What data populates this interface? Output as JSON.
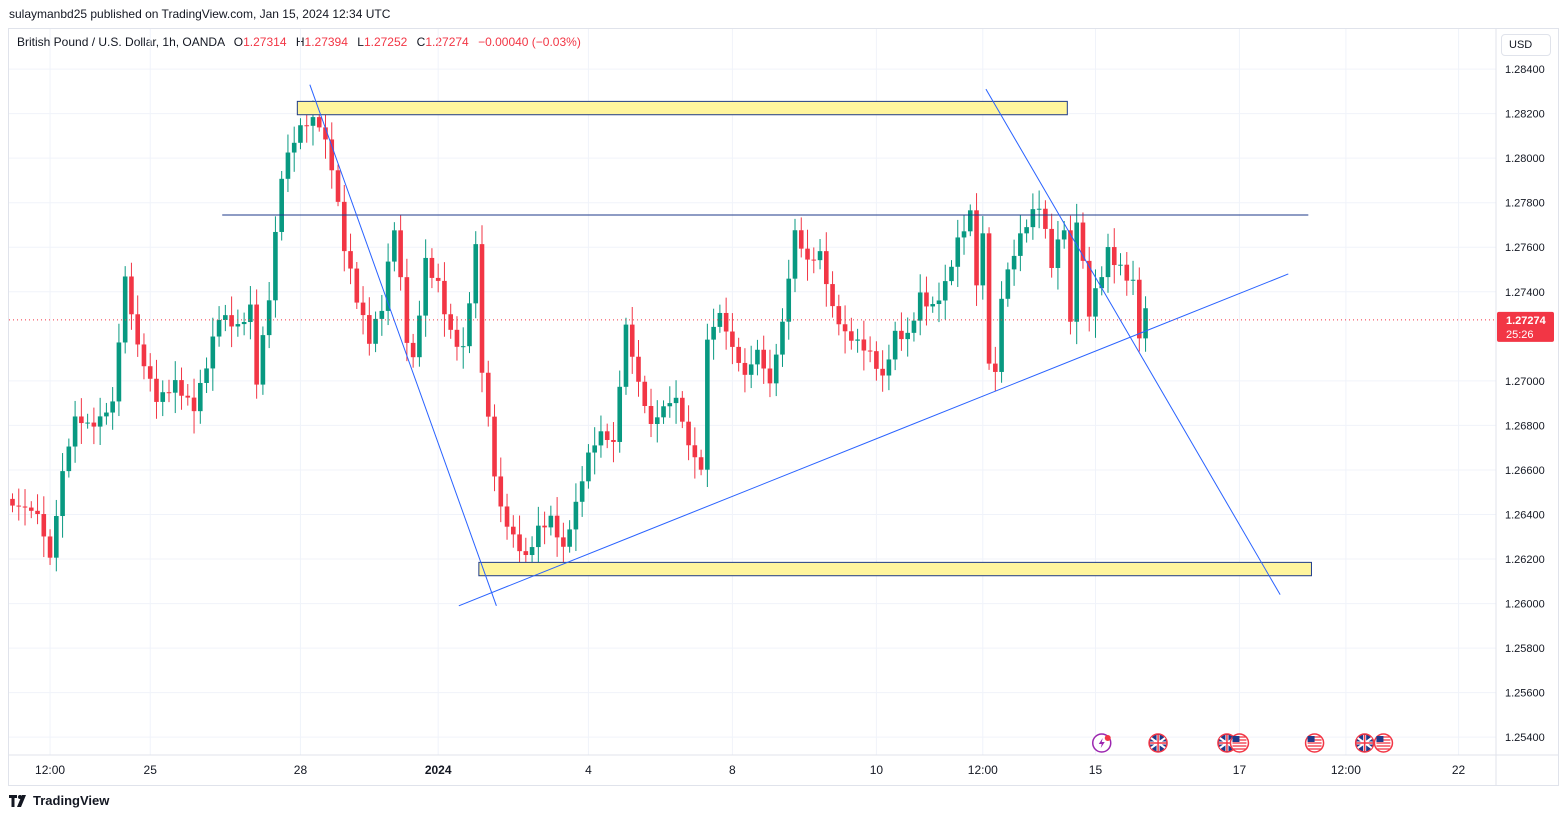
{
  "header": {
    "published_text": "sulaymanbd25 published on TradingView.com, Jan 15, 2024 12:34 UTC"
  },
  "legend": {
    "symbol_text": "British Pound / U.S. Dollar, 1h, OANDA",
    "open_label": "O",
    "open_value": "1.27314",
    "high_label": "H",
    "high_value": "1.27394",
    "low_label": "L",
    "low_value": "1.27252",
    "close_label": "C",
    "close_value": "1.27274",
    "change_text": "−0.00040 (−0.03%)"
  },
  "currency_label": "USD",
  "current_price": {
    "label": "1.27274",
    "countdown": "25:26",
    "value": 1.27274,
    "color": "#f23645"
  },
  "footer": {
    "brand": "TradingView"
  },
  "colors": {
    "up": "#089981",
    "down": "#f23645",
    "drawing": "#2962ff",
    "zone_fill": "#fff59d",
    "zone_border": "#1e3a8a"
  },
  "chart_data": {
    "type": "candlestick",
    "ylim": [
      1.2532,
      1.2858
    ],
    "y_ticks": [
      "1.28400",
      "1.28200",
      "1.28000",
      "1.27800",
      "1.27600",
      "1.27400",
      "1.27000",
      "1.26800",
      "1.26600",
      "1.26400",
      "1.26200",
      "1.26000",
      "1.25800",
      "1.25600",
      "1.25400"
    ],
    "y_tick_values": [
      1.284,
      1.282,
      1.28,
      1.278,
      1.276,
      1.274,
      1.27,
      1.268,
      1.266,
      1.264,
      1.262,
      1.26,
      1.258,
      1.256,
      1.254
    ],
    "x_ticks": [
      {
        "label": "12:00",
        "bar": 6
      },
      {
        "label": "25",
        "bar": 22
      },
      {
        "label": "28",
        "bar": 46
      },
      {
        "label": "2024",
        "bar": 68,
        "bold": true
      },
      {
        "label": "4",
        "bar": 92
      },
      {
        "label": "8",
        "bar": 115
      },
      {
        "label": "10",
        "bar": 138
      },
      {
        "label": "12:00",
        "bar": 155
      },
      {
        "label": "15",
        "bar": 173
      },
      {
        "label": "17",
        "bar": 196
      },
      {
        "label": "12:00",
        "bar": 213
      },
      {
        "label": "22",
        "bar": 231
      }
    ],
    "price_path": [
      [
        0,
        1.2644
      ],
      [
        4,
        1.2636
      ],
      [
        6,
        1.2618
      ],
      [
        8,
        1.266
      ],
      [
        10,
        1.2687
      ],
      [
        13,
        1.2683
      ],
      [
        16,
        1.2688
      ],
      [
        18,
        1.2742
      ],
      [
        20,
        1.2712
      ],
      [
        23,
        1.2693
      ],
      [
        26,
        1.2703
      ],
      [
        29,
        1.2689
      ],
      [
        31,
        1.2705
      ],
      [
        33,
        1.2725
      ],
      [
        36,
        1.2722
      ],
      [
        38,
        1.2734
      ],
      [
        39,
        1.2703
      ],
      [
        41,
        1.2742
      ],
      [
        43,
        1.2795
      ],
      [
        45,
        1.2808
      ],
      [
        47,
        1.2813
      ],
      [
        49,
        1.2812
      ],
      [
        51,
        1.2795
      ],
      [
        53,
        1.2762
      ],
      [
        55,
        1.2741
      ],
      [
        57,
        1.2722
      ],
      [
        59,
        1.2734
      ],
      [
        61,
        1.2767
      ],
      [
        63,
        1.2715
      ],
      [
        64,
        1.2705
      ],
      [
        66,
        1.2752
      ],
      [
        68,
        1.2745
      ],
      [
        70,
        1.2725
      ],
      [
        72,
        1.2717
      ],
      [
        74,
        1.276
      ],
      [
        75,
        1.2704
      ],
      [
        77,
        1.2655
      ],
      [
        78,
        1.2638
      ],
      [
        80,
        1.2627
      ],
      [
        82,
        1.2621
      ],
      [
        84,
        1.2637
      ],
      [
        86,
        1.2642
      ],
      [
        88,
        1.2626
      ],
      [
        90,
        1.2643
      ],
      [
        92,
        1.2663
      ],
      [
        94,
        1.2673
      ],
      [
        96,
        1.2671
      ],
      [
        98,
        1.2727
      ],
      [
        100,
        1.2703
      ],
      [
        102,
        1.2683
      ],
      [
        104,
        1.2688
      ],
      [
        106,
        1.2689
      ],
      [
        108,
        1.2667
      ],
      [
        110,
        1.2658
      ],
      [
        111,
        1.2718
      ],
      [
        113,
        1.2733
      ],
      [
        115,
        1.2719
      ],
      [
        117,
        1.2705
      ],
      [
        119,
        1.2713
      ],
      [
        121,
        1.2695
      ],
      [
        123,
        1.2722
      ],
      [
        125,
        1.2765
      ],
      [
        127,
        1.2755
      ],
      [
        129,
        1.2761
      ],
      [
        131,
        1.2736
      ],
      [
        133,
        1.2722
      ],
      [
        135,
        1.2715
      ],
      [
        137,
        1.2708
      ],
      [
        139,
        1.2698
      ],
      [
        141,
        1.2721
      ],
      [
        143,
        1.2723
      ],
      [
        145,
        1.2742
      ],
      [
        147,
        1.2735
      ],
      [
        149,
        1.2742
      ],
      [
        151,
        1.2759
      ],
      [
        153,
        1.2771
      ],
      [
        154,
        1.2742
      ],
      [
        155,
        1.2763
      ],
      [
        156,
        1.271
      ],
      [
        157,
        1.2704
      ],
      [
        158,
        1.2742
      ],
      [
        160,
        1.2762
      ],
      [
        162,
        1.2773
      ],
      [
        164,
        1.2778
      ],
      [
        166,
        1.2749
      ],
      [
        168,
        1.2766
      ],
      [
        169,
        1.2722
      ],
      [
        170,
        1.2772
      ],
      [
        172,
        1.2733
      ],
      [
        173,
        1.2743
      ],
      [
        175,
        1.2762
      ],
      [
        177,
        1.2752
      ],
      [
        179,
        1.2742
      ],
      [
        180,
        1.2718
      ],
      [
        181,
        1.2727
      ]
    ],
    "drawings": {
      "zones": [
        {
          "bar_start": 45.5,
          "bar_end": 168.5,
          "price_top": 1.28255,
          "price_bottom": 1.28195
        },
        {
          "bar_start": 74.5,
          "bar_end": 207.5,
          "price_top": 1.26185,
          "price_bottom": 1.26125
        }
      ],
      "hlines": [
        {
          "bar_start": 33.5,
          "bar_end": 207,
          "price": 1.27745
        }
      ],
      "trendlines": [
        {
          "bar1": 47.5,
          "price1": 1.2833,
          "bar2": 77.3,
          "price2": 1.2599
        },
        {
          "bar1": 71.3,
          "price1": 1.2599,
          "bar2": 203.8,
          "price2": 1.2748
        },
        {
          "bar1": 155.5,
          "price1": 1.2831,
          "bar2": 202.5,
          "price2": 1.2604
        }
      ]
    }
  },
  "events": [
    {
      "type": "dividend",
      "bar": 174
    },
    {
      "type": "gb",
      "bar": 183
    },
    {
      "type": "gb",
      "bar": 194
    },
    {
      "type": "us",
      "bar": 196
    },
    {
      "type": "us",
      "bar": 208
    },
    {
      "type": "gb",
      "bar": 216
    },
    {
      "type": "us",
      "bar": 219
    }
  ]
}
